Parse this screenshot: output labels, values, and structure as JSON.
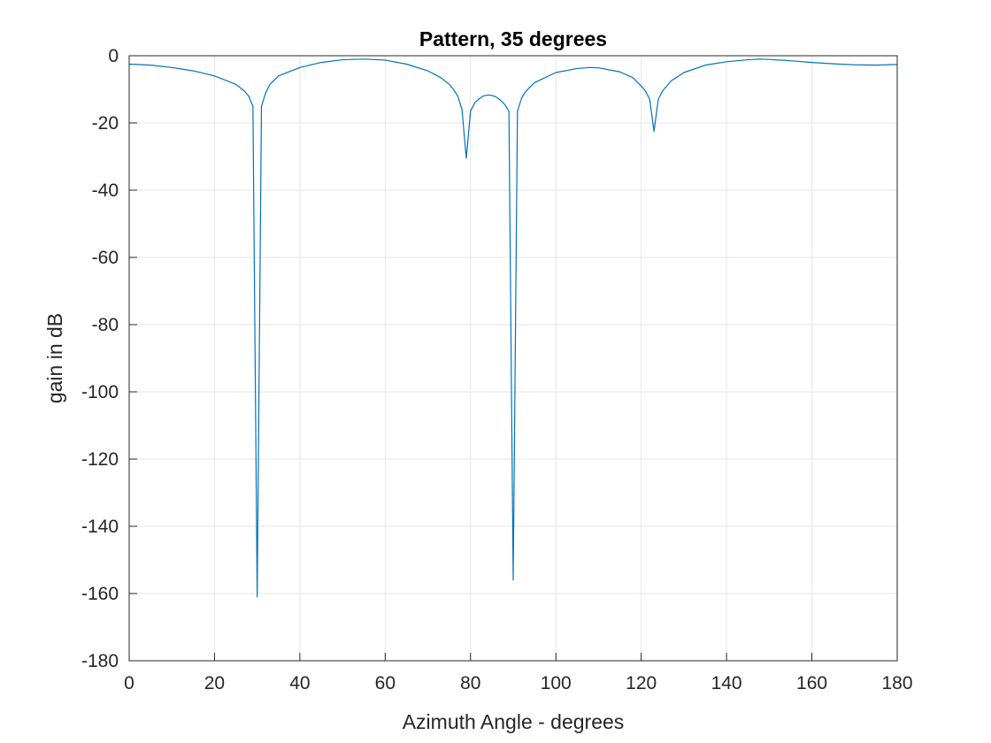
{
  "chart_data": {
    "type": "line",
    "title": "Pattern, 35 degrees",
    "xlabel": "Azimuth Angle - degrees",
    "ylabel": "gain in dB",
    "xlim": [
      0,
      180
    ],
    "ylim": [
      -180,
      0
    ],
    "xticks": [
      0,
      20,
      40,
      60,
      80,
      100,
      120,
      140,
      160,
      180
    ],
    "yticks": [
      0,
      -20,
      -40,
      -60,
      -80,
      -100,
      -120,
      -140,
      -160,
      -180
    ],
    "xtick_labels": [
      "0",
      "20",
      "40",
      "60",
      "80",
      "100",
      "120",
      "140",
      "160",
      "180"
    ],
    "ytick_labels": [
      "0",
      "-20",
      "-40",
      "-60",
      "-80",
      "-100",
      "-120",
      "-140",
      "-160",
      "-180"
    ],
    "grid": true,
    "box": true,
    "colors": {
      "line": "#0072BD",
      "grid": "#e6e6e6",
      "axes": "#262626"
    },
    "series": [
      {
        "x": [
          0,
          5,
          10,
          15,
          20,
          25,
          27,
          28,
          29,
          30,
          31,
          32,
          33,
          35,
          40,
          45,
          50,
          55,
          60,
          65,
          70,
          73,
          75,
          76,
          77,
          78,
          79,
          80,
          81,
          82,
          83,
          84,
          85,
          86,
          87,
          88,
          89,
          90,
          91,
          92,
          93,
          95,
          100,
          105,
          108,
          110,
          115,
          118,
          120,
          121,
          122,
          123,
          124,
          125,
          127,
          130,
          135,
          140,
          145,
          148,
          150,
          155,
          160,
          165,
          170,
          175,
          180
        ],
        "y": [
          -2.5,
          -2.8,
          -3.5,
          -4.5,
          -6,
          -8.5,
          -10.5,
          -12,
          -15,
          -161,
          -15,
          -11,
          -8.5,
          -6,
          -3.5,
          -2,
          -1.2,
          -1,
          -1.3,
          -2.5,
          -4.5,
          -6.5,
          -8.5,
          -10,
          -12,
          -16,
          -30.5,
          -16.5,
          -14,
          -12.8,
          -12,
          -11.7,
          -11.8,
          -12.3,
          -13.2,
          -14.5,
          -16.5,
          -156,
          -16.5,
          -12.5,
          -10.5,
          -8,
          -5,
          -3.8,
          -3.5,
          -3.6,
          -4.8,
          -6.5,
          -9,
          -10.5,
          -13,
          -22.5,
          -13,
          -10.5,
          -7.5,
          -5,
          -2.8,
          -1.8,
          -1.2,
          -1,
          -1.1,
          -1.5,
          -2,
          -2.4,
          -2.7,
          -2.8,
          -2.6
        ]
      }
    ]
  }
}
